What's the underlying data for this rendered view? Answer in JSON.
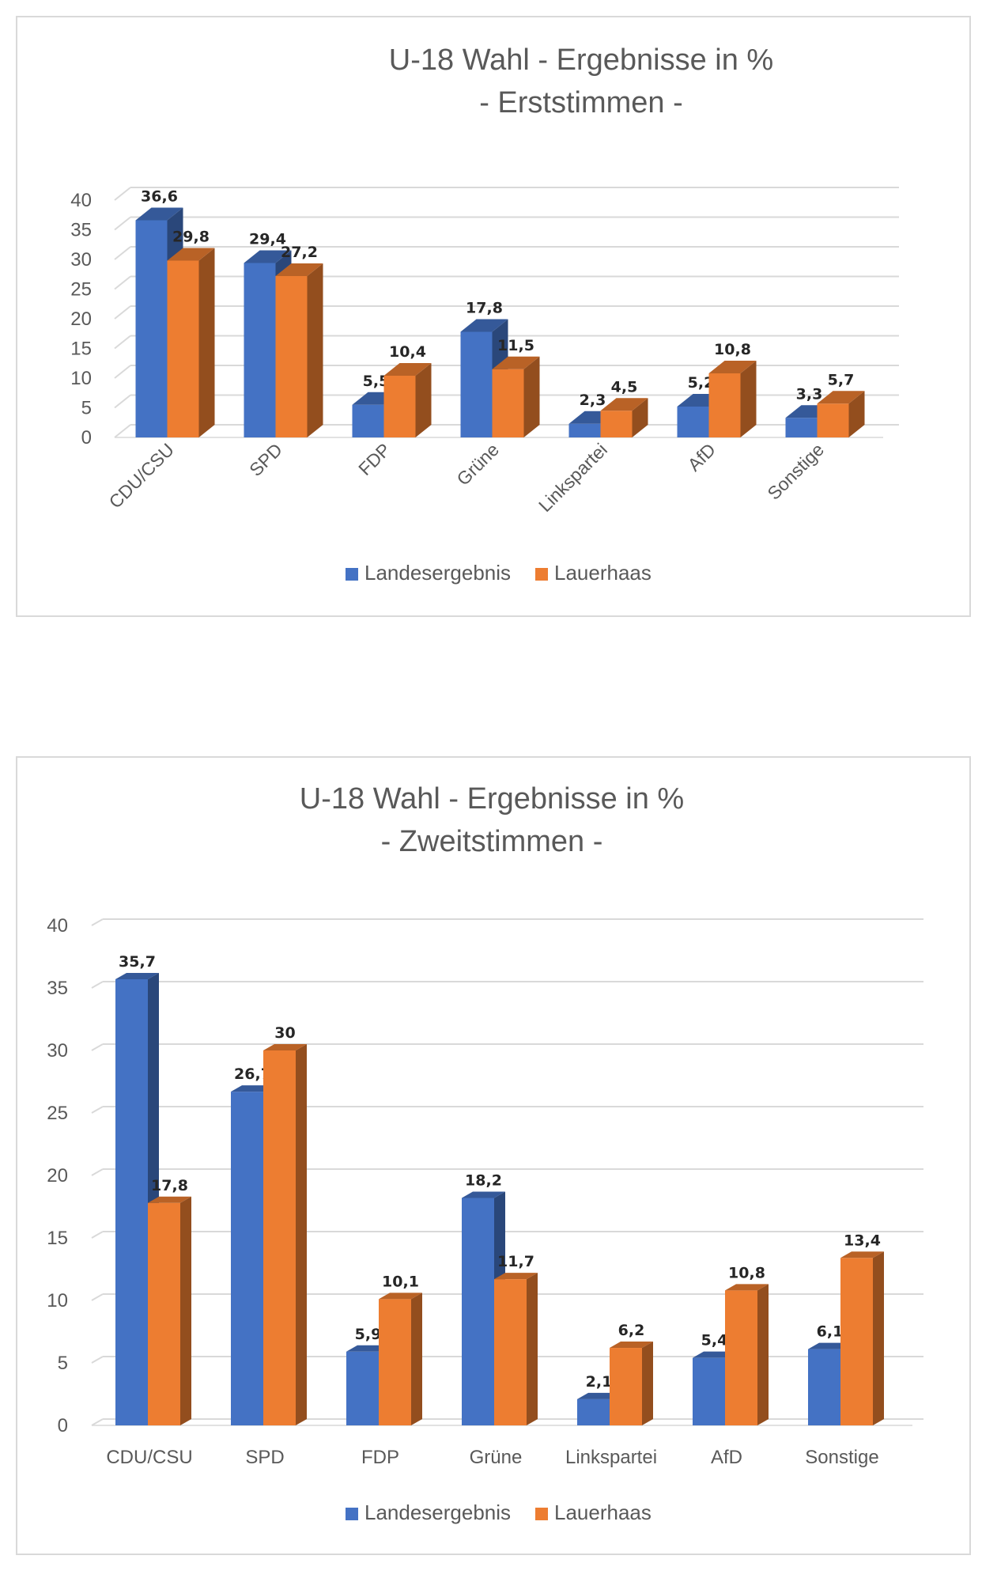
{
  "chart_data": [
    {
      "type": "bar",
      "title": "U-18 Wahl - Ergebnisse in %",
      "subtitle": "- Erststimmen  -",
      "categories": [
        "CDU/CSU",
        "SPD",
        "FDP",
        "Grüne",
        "Linkspartei",
        "AfD",
        "Sonstige"
      ],
      "series": [
        {
          "name": "Landesergebnis",
          "values": [
            36.6,
            29.4,
            5.5,
            17.8,
            2.3,
            5.2,
            3.3
          ],
          "labels": [
            "36,6",
            "29,4",
            "5,5",
            "17,8",
            "2,3",
            "5,2",
            "3,3"
          ],
          "color": "#4472c4"
        },
        {
          "name": "Lauerhaas",
          "values": [
            29.8,
            27.2,
            10.4,
            11.5,
            4.5,
            10.8,
            5.7
          ],
          "labels": [
            "29,8",
            "27,2",
            "10,4",
            "11,5",
            "4,5",
            "10,8",
            "5,7"
          ],
          "color": "#ed7d31"
        }
      ],
      "yticks": [
        "0",
        "5",
        "10",
        "15",
        "20",
        "25",
        "30",
        "35",
        "40"
      ],
      "ylim": [
        0,
        40
      ],
      "category_labels_rotated": true,
      "grid": true,
      "legend_position": "bottom",
      "style": "3d-clustered-column"
    },
    {
      "type": "bar",
      "title": "U-18 Wahl - Ergebnisse in %",
      "subtitle": "- Zweitstimmen -",
      "categories": [
        "CDU/CSU",
        "SPD",
        "FDP",
        "Grüne",
        "Linkspartei",
        "AfD",
        "Sonstige"
      ],
      "series": [
        {
          "name": "Landesergebnis",
          "values": [
            35.7,
            26.7,
            5.9,
            18.2,
            2.1,
            5.4,
            6.1
          ],
          "labels": [
            "35,7",
            "26,7",
            "5,9",
            "18,2",
            "2,1",
            "5,4",
            "6,1"
          ],
          "color": "#4472c4"
        },
        {
          "name": "Lauerhaas",
          "values": [
            17.8,
            30,
            10.1,
            11.7,
            6.2,
            10.8,
            13.4
          ],
          "labels": [
            "17,8",
            "30",
            "10,1",
            "11,7",
            "6,2",
            "10,8",
            "13,4"
          ],
          "color": "#ed7d31"
        }
      ],
      "yticks": [
        "0",
        "5",
        "10",
        "15",
        "20",
        "25",
        "30",
        "35",
        "40"
      ],
      "ylim": [
        0,
        40
      ],
      "category_labels_rotated": false,
      "grid": true,
      "legend_position": "bottom",
      "style": "3d-clustered-column"
    }
  ]
}
